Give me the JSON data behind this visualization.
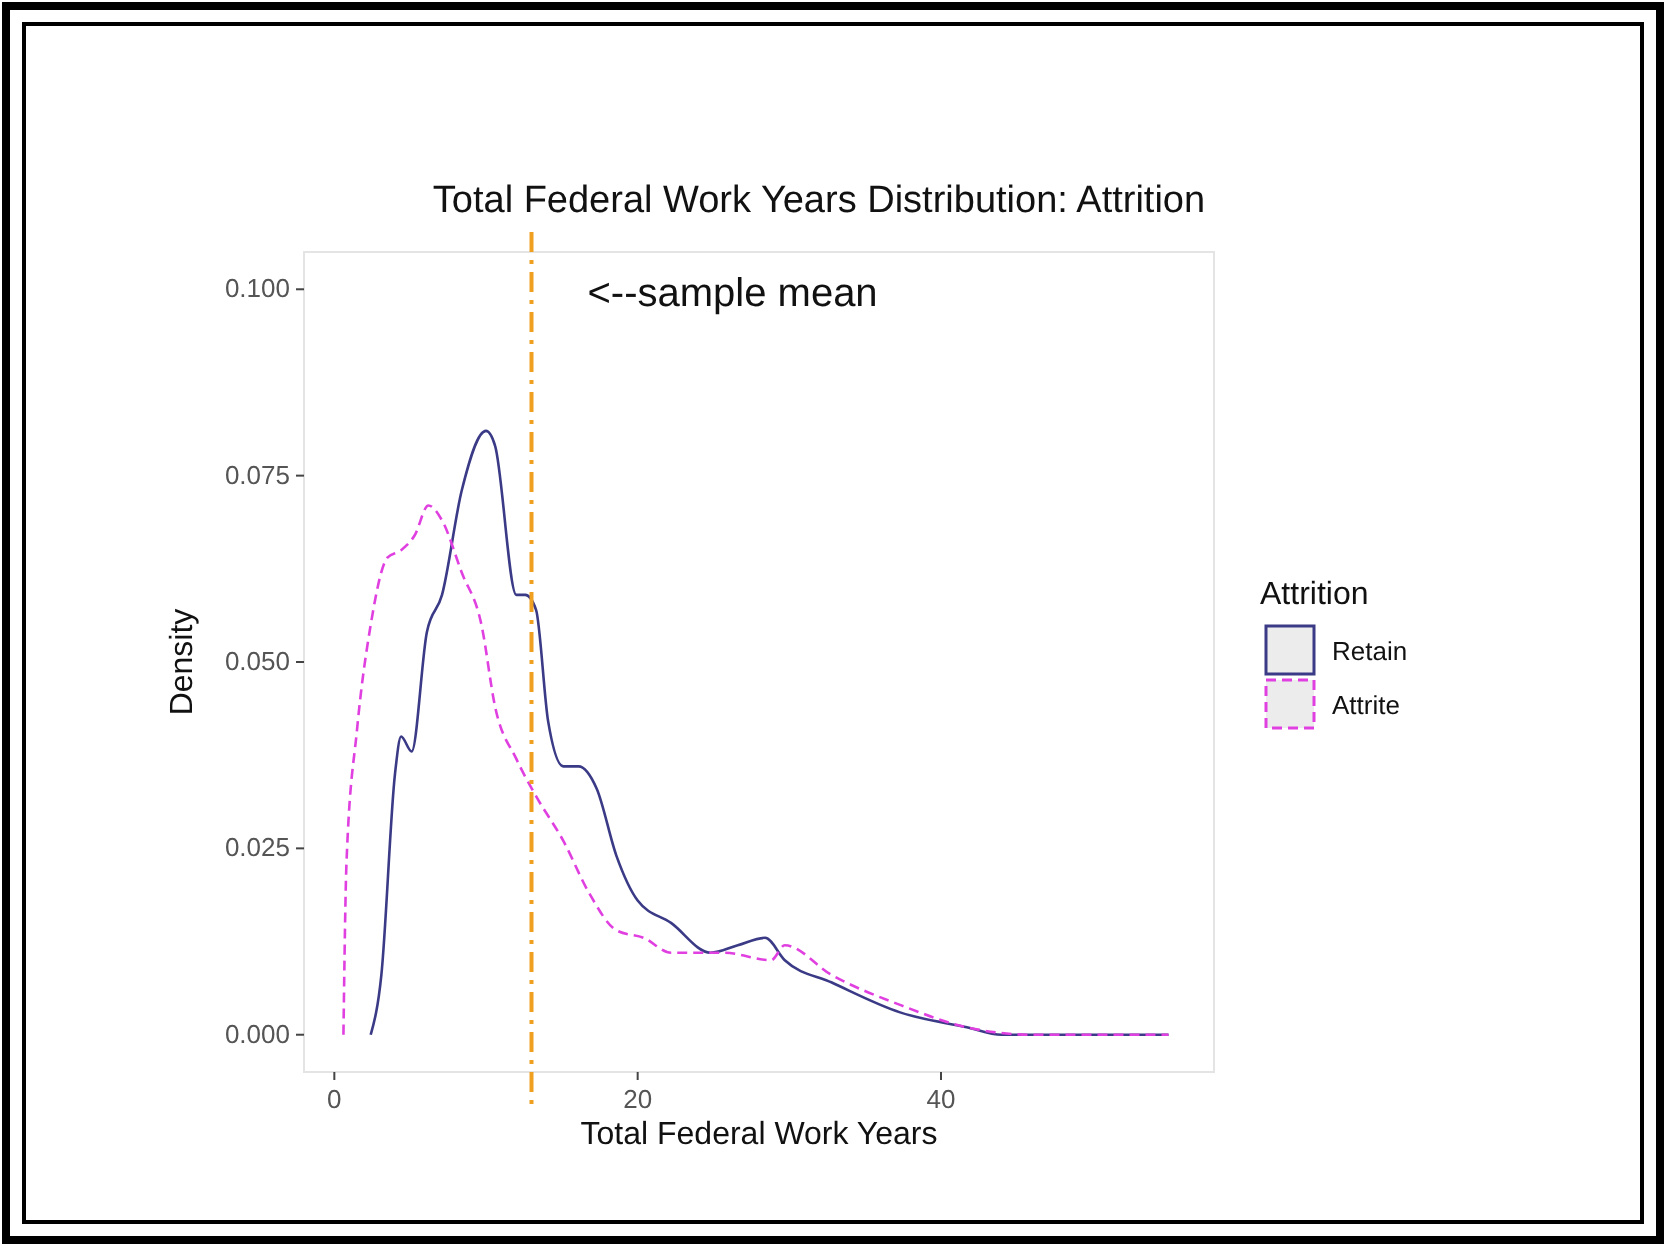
{
  "chart_data": {
    "type": "line",
    "title": "Total Federal Work Years Distribution: Attrition",
    "xlabel": "Total Federal Work Years",
    "ylabel": "Density",
    "legend_title": "Attrition",
    "legend": "right",
    "grid": false,
    "xlim": [
      -2,
      58
    ],
    "xticks": [
      0,
      20,
      40
    ],
    "ylim": [
      -0.005,
      0.105
    ],
    "yticks": [
      {
        "value": 0,
        "label": "0.000"
      },
      {
        "value": 0.025,
        "label": "0.025"
      },
      {
        "value": 0.05,
        "label": "0.050"
      },
      {
        "value": 0.075,
        "label": "0.075"
      },
      {
        "value": 0.1,
        "label": "0.100"
      }
    ],
    "ref_lines": [
      {
        "axis": "x",
        "value": 13,
        "label": "<--sample mean",
        "color": "#f0a020",
        "line_style": "dashed"
      }
    ],
    "series": [
      {
        "name": "Retain",
        "color": "#3a3a86",
        "line_style": "solid",
        "x": [
          2.4,
          3.1,
          4,
          4.4,
          5.1,
          6.1,
          7.1,
          8.4,
          10,
          10.6,
          12,
          12.6,
          13.3,
          14.1,
          15.1,
          16.1,
          17.3,
          18.6,
          20,
          22.2,
          24.8,
          26.6,
          28.4,
          29.7,
          32.8,
          37.3,
          41.7,
          44,
          55
        ],
        "values": [
          0,
          0.008,
          0.035,
          0.04,
          0.038,
          0.054,
          0.059,
          0.073,
          0.081,
          0.079,
          0.059,
          0.059,
          0.057,
          0.042,
          0.036,
          0.036,
          0.033,
          0.024,
          0.018,
          0.015,
          0.011,
          0.012,
          0.013,
          0.01,
          0.007,
          0.003,
          0.001,
          0,
          0
        ]
      },
      {
        "name": "Attrite",
        "color": "#e040e0",
        "line_style": "dashed",
        "x": [
          0.6,
          0.8,
          1.5,
          2.4,
          3.5,
          4.4,
          5.3,
          6.2,
          7.1,
          8.4,
          9.7,
          10.6,
          12,
          13.3,
          15.1,
          16.8,
          18.6,
          20.4,
          22.2,
          25.7,
          28.8,
          29.7,
          32.8,
          37.3,
          41.7,
          46,
          55
        ],
        "values": [
          0,
          0.023,
          0.041,
          0.055,
          0.064,
          0.065,
          0.067,
          0.071,
          0.069,
          0.062,
          0.055,
          0.044,
          0.037,
          0.032,
          0.026,
          0.019,
          0.014,
          0.013,
          0.011,
          0.011,
          0.01,
          0.012,
          0.008,
          0.004,
          0.001,
          0,
          0
        ]
      }
    ]
  }
}
